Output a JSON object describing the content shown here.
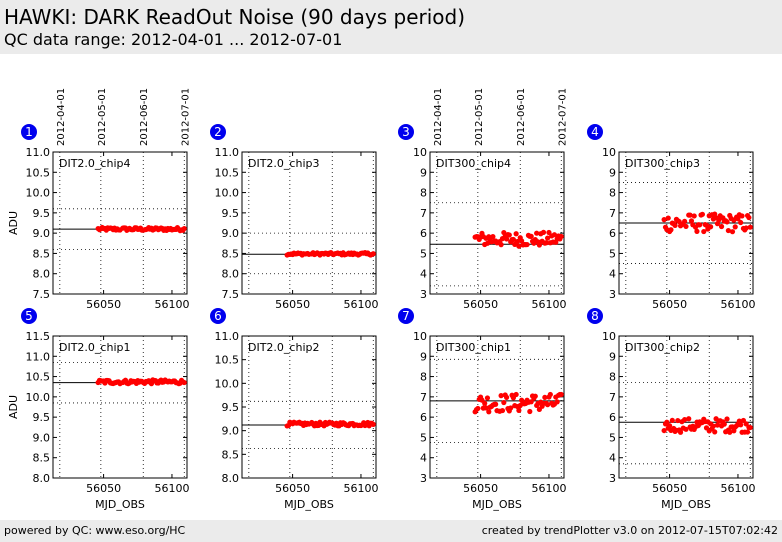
{
  "header": {
    "title": "HAWKI: DARK ReadOut Noise (90 days period)",
    "subtitle": "QC data range: 2012-04-01 ... 2012-07-01"
  },
  "footer": {
    "left": "powered by QC: www.eso.org/HC",
    "right": "created by trendPlotter v3.0 on 2012-07-15T07:02:42"
  },
  "colors": {
    "points": "#ff0000",
    "badge": "#0000ee",
    "reference": "#000000"
  },
  "date_axis": {
    "labels": [
      "2012-04-01",
      "2012-05-01",
      "2012-06-01",
      "2012-07-01"
    ],
    "mjd": [
      56018,
      56048,
      56079,
      56109
    ]
  },
  "chart_data": [
    {
      "type": "scatter",
      "badge": "1",
      "label": "DIT2.0_chip4",
      "ylabel": "ADU",
      "xlabel": "",
      "xlim": [
        56013,
        56111
      ],
      "ylim": [
        7.5,
        11.0
      ],
      "yticks": [
        "7.5",
        "8.0",
        "8.5",
        "9.0",
        "9.5",
        "10.0",
        "10.5",
        "11.0"
      ],
      "xticks": [
        "56050",
        "56100"
      ],
      "top_dates": true,
      "reference": 9.1,
      "limits": [
        8.6,
        9.6
      ],
      "level": 9.1,
      "spread": 0.04
    },
    {
      "type": "scatter",
      "badge": "2",
      "label": "DIT2.0_chip3",
      "ylabel": "",
      "xlabel": "",
      "xlim": [
        56013,
        56111
      ],
      "ylim": [
        7.5,
        11.0
      ],
      "yticks": [
        "7.5",
        "8.0",
        "8.5",
        "9.0",
        "9.5",
        "10.0",
        "10.5",
        "11.0"
      ],
      "xticks": [
        "56050",
        "56100"
      ],
      "top_dates": false,
      "reference": 8.48,
      "limits": [
        8.0,
        9.0
      ],
      "level": 8.49,
      "spread": 0.03
    },
    {
      "type": "scatter",
      "badge": "3",
      "label": "DIT300_chip4",
      "ylabel": "",
      "xlabel": "",
      "xlim": [
        56013,
        56111
      ],
      "ylim": [
        3,
        10
      ],
      "yticks": [
        "3",
        "4",
        "5",
        "6",
        "7",
        "8",
        "9",
        "10"
      ],
      "xticks": [
        "56050",
        "56100"
      ],
      "top_dates": true,
      "reference": 5.45,
      "limits": [
        3.4,
        7.5
      ],
      "level": 5.7,
      "spread": 0.35
    },
    {
      "type": "scatter",
      "badge": "4",
      "label": "DIT300_chip3",
      "ylabel": "",
      "xlabel": "",
      "xlim": [
        56013,
        56111
      ],
      "ylim": [
        3,
        10
      ],
      "yticks": [
        "3",
        "4",
        "5",
        "6",
        "7",
        "8",
        "9",
        "10"
      ],
      "xticks": [
        "56050",
        "56100"
      ],
      "top_dates": false,
      "reference": 6.5,
      "limits": [
        4.5,
        8.5
      ],
      "level": 6.5,
      "spread": 0.45
    },
    {
      "type": "scatter",
      "badge": "5",
      "label": "DIT2.0_chip1",
      "ylabel": "ADU",
      "xlabel": "MJD_OBS",
      "xlim": [
        56013,
        56111
      ],
      "ylim": [
        8.0,
        11.5
      ],
      "yticks": [
        "8.0",
        "8.5",
        "9.0",
        "9.5",
        "10.0",
        "10.5",
        "11.0",
        "11.5"
      ],
      "xticks": [
        "56050",
        "56100"
      ],
      "top_dates": false,
      "reference": 10.35,
      "limits": [
        9.85,
        10.85
      ],
      "level": 10.37,
      "spread": 0.05
    },
    {
      "type": "scatter",
      "badge": "6",
      "label": "DIT2.0_chip2",
      "ylabel": "",
      "xlabel": "MJD_OBS",
      "xlim": [
        56013,
        56111
      ],
      "ylim": [
        8.0,
        11.0
      ],
      "yticks": [
        "8.0",
        "8.5",
        "9.0",
        "9.5",
        "10.0",
        "10.5",
        "11.0"
      ],
      "xticks": [
        "56050",
        "56100"
      ],
      "top_dates": false,
      "reference": 9.12,
      "limits": [
        8.62,
        9.62
      ],
      "level": 9.14,
      "spread": 0.04
    },
    {
      "type": "scatter",
      "badge": "7",
      "label": "DIT300_chip1",
      "ylabel": "",
      "xlabel": "MJD_OBS",
      "xlim": [
        56013,
        56111
      ],
      "ylim": [
        3,
        10
      ],
      "yticks": [
        "3",
        "4",
        "5",
        "6",
        "7",
        "8",
        "9",
        "10"
      ],
      "xticks": [
        "56050",
        "56100"
      ],
      "top_dates": false,
      "reference": 6.8,
      "limits": [
        4.75,
        8.85
      ],
      "level": 6.7,
      "spread": 0.45
    },
    {
      "type": "scatter",
      "badge": "8",
      "label": "DIT300_chip2",
      "ylabel": "",
      "xlabel": "MJD_OBS",
      "xlim": [
        56013,
        56111
      ],
      "ylim": [
        3,
        10
      ],
      "yticks": [
        "3",
        "4",
        "5",
        "6",
        "7",
        "8",
        "9",
        "10"
      ],
      "xticks": [
        "56050",
        "56100"
      ],
      "top_dates": false,
      "reference": 5.75,
      "limits": [
        3.7,
        7.7
      ],
      "level": 5.6,
      "spread": 0.35
    }
  ]
}
